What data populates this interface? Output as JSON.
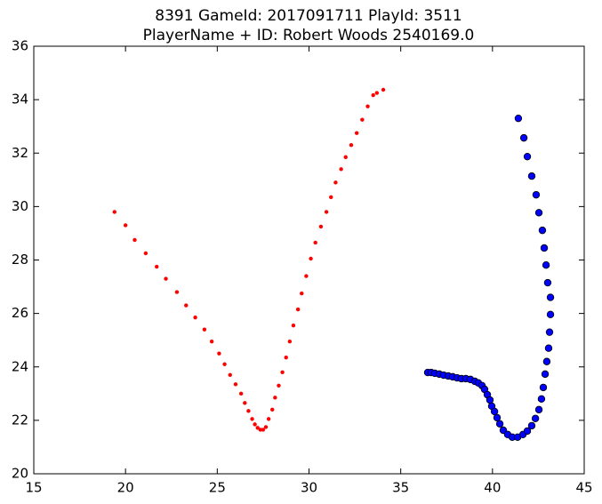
{
  "chart_data": {
    "type": "scatter",
    "title": [
      "8391 GameId: 2017091711 PlayId: 3511",
      "PlayerName + ID: Robert Woods 2540169.0"
    ],
    "xlim": [
      15,
      45
    ],
    "ylim": [
      20,
      36
    ],
    "xticks": [
      15,
      20,
      25,
      30,
      35,
      40,
      45
    ],
    "yticks": [
      20,
      22,
      24,
      26,
      28,
      30,
      32,
      34,
      36
    ],
    "series": [
      {
        "color": "#ff0000",
        "marker": "small",
        "x": [
          19.4,
          20.0,
          20.5,
          21.1,
          21.7,
          22.2,
          22.8,
          23.3,
          23.8,
          24.3,
          24.7,
          25.1,
          25.4,
          25.7,
          26.0,
          26.3,
          26.5,
          26.7,
          26.9,
          27.05,
          27.2,
          27.35,
          27.5,
          27.65,
          27.8,
          28.0,
          28.15,
          28.35,
          28.55,
          28.75,
          28.95,
          29.15,
          29.4,
          29.6,
          29.85,
          30.1,
          30.35,
          30.65,
          30.95,
          31.2,
          31.45,
          31.75,
          32.0,
          32.3,
          32.6,
          32.9,
          33.2,
          33.5,
          33.7,
          34.05
        ],
        "y": [
          29.8,
          29.3,
          28.75,
          28.25,
          27.75,
          27.3,
          26.8,
          26.3,
          25.85,
          25.4,
          24.95,
          24.5,
          24.1,
          23.7,
          23.35,
          23.0,
          22.65,
          22.35,
          22.05,
          21.85,
          21.72,
          21.65,
          21.65,
          21.75,
          22.05,
          22.4,
          22.85,
          23.3,
          23.8,
          24.35,
          24.95,
          25.55,
          26.15,
          26.75,
          27.4,
          28.05,
          28.65,
          29.25,
          29.8,
          30.35,
          30.9,
          31.4,
          31.85,
          32.3,
          32.75,
          33.25,
          33.75,
          34.17,
          34.25,
          34.37
        ]
      },
      {
        "color": "#0000ff",
        "marker": "large",
        "x": [
          36.47,
          36.66,
          36.86,
          37.1,
          37.34,
          37.59,
          37.83,
          38.07,
          38.31,
          38.55,
          38.8,
          39.04,
          39.23,
          39.43,
          39.57,
          39.72,
          39.86,
          39.96,
          40.11,
          40.25,
          40.4,
          40.59,
          40.83,
          41.08,
          41.37,
          41.66,
          41.9,
          42.14,
          42.34,
          42.53,
          42.67,
          42.77,
          42.87,
          42.96,
          43.06,
          43.11,
          43.16,
          43.16,
          43.01,
          42.92,
          42.82,
          42.72,
          42.53,
          42.38,
          42.14,
          41.9,
          41.71,
          41.41
        ],
        "y": [
          23.79,
          23.79,
          23.76,
          23.73,
          23.69,
          23.66,
          23.63,
          23.59,
          23.56,
          23.56,
          23.53,
          23.46,
          23.4,
          23.3,
          23.16,
          22.96,
          22.76,
          22.53,
          22.33,
          22.1,
          21.87,
          21.63,
          21.47,
          21.37,
          21.37,
          21.47,
          21.6,
          21.8,
          22.07,
          22.4,
          22.8,
          23.23,
          23.73,
          24.2,
          24.7,
          25.3,
          25.96,
          26.6,
          27.15,
          27.81,
          28.45,
          29.11,
          29.77,
          30.44,
          31.14,
          31.87,
          32.57,
          33.3
        ]
      }
    ]
  }
}
